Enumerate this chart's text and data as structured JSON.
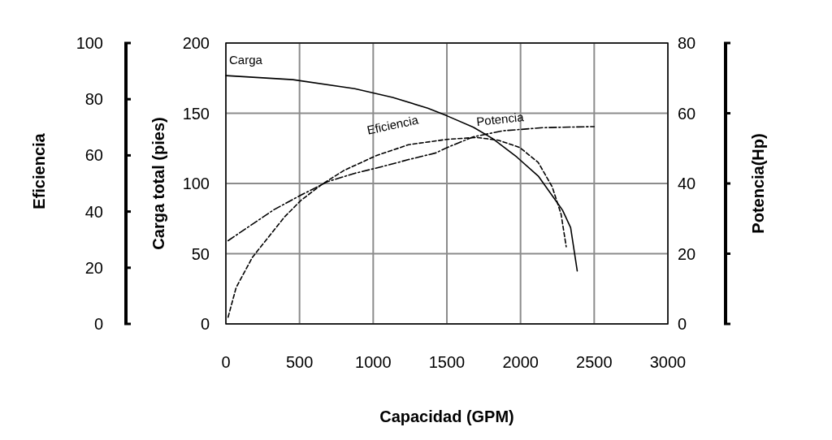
{
  "chart_data": {
    "type": "line",
    "xlabel": "Capacidad (GPM)",
    "ylabel": "Carga total (pies)",
    "y2label": "Potencia(Hp)",
    "y3label": "Eficiencia",
    "xlim": [
      0,
      3000
    ],
    "xticks": [
      0,
      500,
      1000,
      1500,
      2000,
      2500,
      3000
    ],
    "ylim": [
      0,
      200
    ],
    "yticks": [
      0,
      50,
      100,
      150,
      200
    ],
    "y2lim": [
      0,
      80
    ],
    "y2ticks": [
      0,
      20,
      40,
      60,
      80
    ],
    "y3lim": [
      0,
      100
    ],
    "y3ticks": [
      0,
      20,
      40,
      60,
      80,
      100
    ],
    "grid": true,
    "series": [
      {
        "name": "Carga",
        "color": "#000000",
        "line_style": "solid",
        "x": [
          0,
          455,
          875,
          1132,
          1370,
          1500,
          1680,
          1810,
          1975,
          2120,
          2285,
          2340,
          2385
        ],
        "values": [
          176.8,
          173.9,
          167.5,
          161.3,
          153.6,
          148.2,
          140,
          132,
          118.8,
          105.3,
          81,
          68.6,
          37.7
        ]
      },
      {
        "name": "Eficiencia",
        "color": "#000000",
        "line_style": "dashed",
        "axis": "y3",
        "x": [
          15,
          70,
          180,
          400,
          510,
          655,
          800,
          1020,
          1240,
          1500,
          1700,
          1850,
          1995,
          2120,
          2215,
          2275,
          2310
        ],
        "values": [
          2.4,
          13,
          23.7,
          38.2,
          44,
          49.8,
          54.6,
          59.9,
          63.8,
          65.7,
          66.4,
          65.4,
          62.8,
          57.5,
          48.8,
          39.1,
          27.5
        ]
      },
      {
        "name": "Potencia",
        "color": "#000000",
        "line_style": "dashdot",
        "axis": "y2",
        "x": [
          15,
          145,
          325,
          510,
          695,
          875,
          1060,
          1240,
          1425,
          1500,
          1680,
          1880,
          2155,
          2500
        ],
        "values": [
          23.7,
          27.4,
          32.5,
          36.7,
          40.6,
          42.9,
          44.8,
          46.8,
          48.7,
          50.2,
          53.3,
          55,
          55.9,
          56.2
        ]
      }
    ]
  }
}
